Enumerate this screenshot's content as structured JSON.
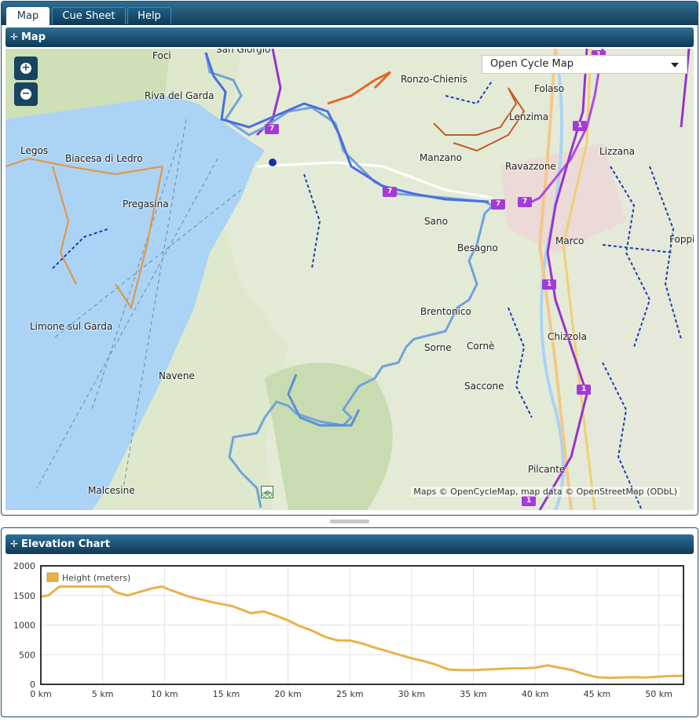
{
  "tabs": [
    {
      "label": "Map",
      "active": true
    },
    {
      "label": "Cue Sheet",
      "active": false
    },
    {
      "label": "Help",
      "active": false
    }
  ],
  "map_panel": {
    "title": "Map",
    "zoom_in_icon": "plus-icon",
    "zoom_out_icon": "minus-icon",
    "layer_select": {
      "selected": "Open Cycle Map"
    },
    "attribution": "Maps © OpenCycleMap, map data © OpenStreetMap (ODbL)",
    "places": [
      {
        "name": "Foci"
      },
      {
        "name": "San Giorgio"
      },
      {
        "name": "Riva del Garda"
      },
      {
        "name": "Ronzo-Chienis"
      },
      {
        "name": "Folaso"
      },
      {
        "name": "Lenzima"
      },
      {
        "name": "Legos"
      },
      {
        "name": "Biacesa di Ledro"
      },
      {
        "name": "Manzano"
      },
      {
        "name": "Ravazzone"
      },
      {
        "name": "Lizzana"
      },
      {
        "name": "Pregasina"
      },
      {
        "name": "Sano"
      },
      {
        "name": "Besagno"
      },
      {
        "name": "Marco"
      },
      {
        "name": "Foppi"
      },
      {
        "name": "Limone sul Garda"
      },
      {
        "name": "Brentonico"
      },
      {
        "name": "Sorne"
      },
      {
        "name": "Cornè"
      },
      {
        "name": "Chizzola"
      },
      {
        "name": "Navene"
      },
      {
        "name": "Saccone"
      },
      {
        "name": "Malcesine"
      },
      {
        "name": "Pilcante"
      }
    ],
    "route_badges": [
      "7",
      "7",
      "7",
      "7",
      "1",
      "1",
      "1",
      "1",
      "1"
    ],
    "colors": {
      "route": "#4a7fd8",
      "route_light": "#6fa3dc",
      "cycleway": "#9933cc",
      "lake": "#aad3f5"
    }
  },
  "elevation_panel": {
    "title": "Elevation Chart"
  },
  "chart_data": {
    "type": "area",
    "title": "",
    "xlabel": "",
    "ylabel": "",
    "xlim": [
      0,
      52
    ],
    "ylim": [
      0,
      2000
    ],
    "x_ticks": [
      "0 km",
      "5 km",
      "10 km",
      "15 km",
      "20 km",
      "25 km",
      "30 km",
      "35 km",
      "40 km",
      "45 km",
      "50 km"
    ],
    "y_ticks": [
      "2000",
      "1500",
      "1000",
      "500",
      "0"
    ],
    "legend": {
      "position": "top-left",
      "entries": [
        "Height (meters)"
      ]
    },
    "grid": true,
    "series": [
      {
        "name": "Height (meters)",
        "color": "#e8b24a",
        "x": [
          0,
          0.6,
          1.2,
          1.5,
          5.5,
          6,
          7,
          8,
          9,
          9.8,
          10.5,
          12,
          14,
          15.5,
          17,
          18,
          19,
          20,
          21,
          22,
          23,
          24,
          25,
          26,
          27,
          28,
          29,
          30,
          31,
          32,
          33,
          34,
          35,
          36,
          37,
          38,
          39,
          40,
          41,
          42,
          43,
          44,
          45,
          46,
          47,
          48,
          49,
          50,
          51,
          52
        ],
        "y": [
          1480,
          1500,
          1600,
          1650,
          1650,
          1560,
          1500,
          1560,
          1620,
          1650,
          1590,
          1480,
          1380,
          1320,
          1200,
          1230,
          1160,
          1080,
          980,
          900,
          800,
          740,
          740,
          690,
          620,
          560,
          500,
          440,
          390,
          330,
          250,
          240,
          240,
          250,
          260,
          270,
          270,
          280,
          320,
          280,
          240,
          170,
          120,
          110,
          115,
          120,
          115,
          130,
          140,
          145
        ]
      }
    ]
  }
}
